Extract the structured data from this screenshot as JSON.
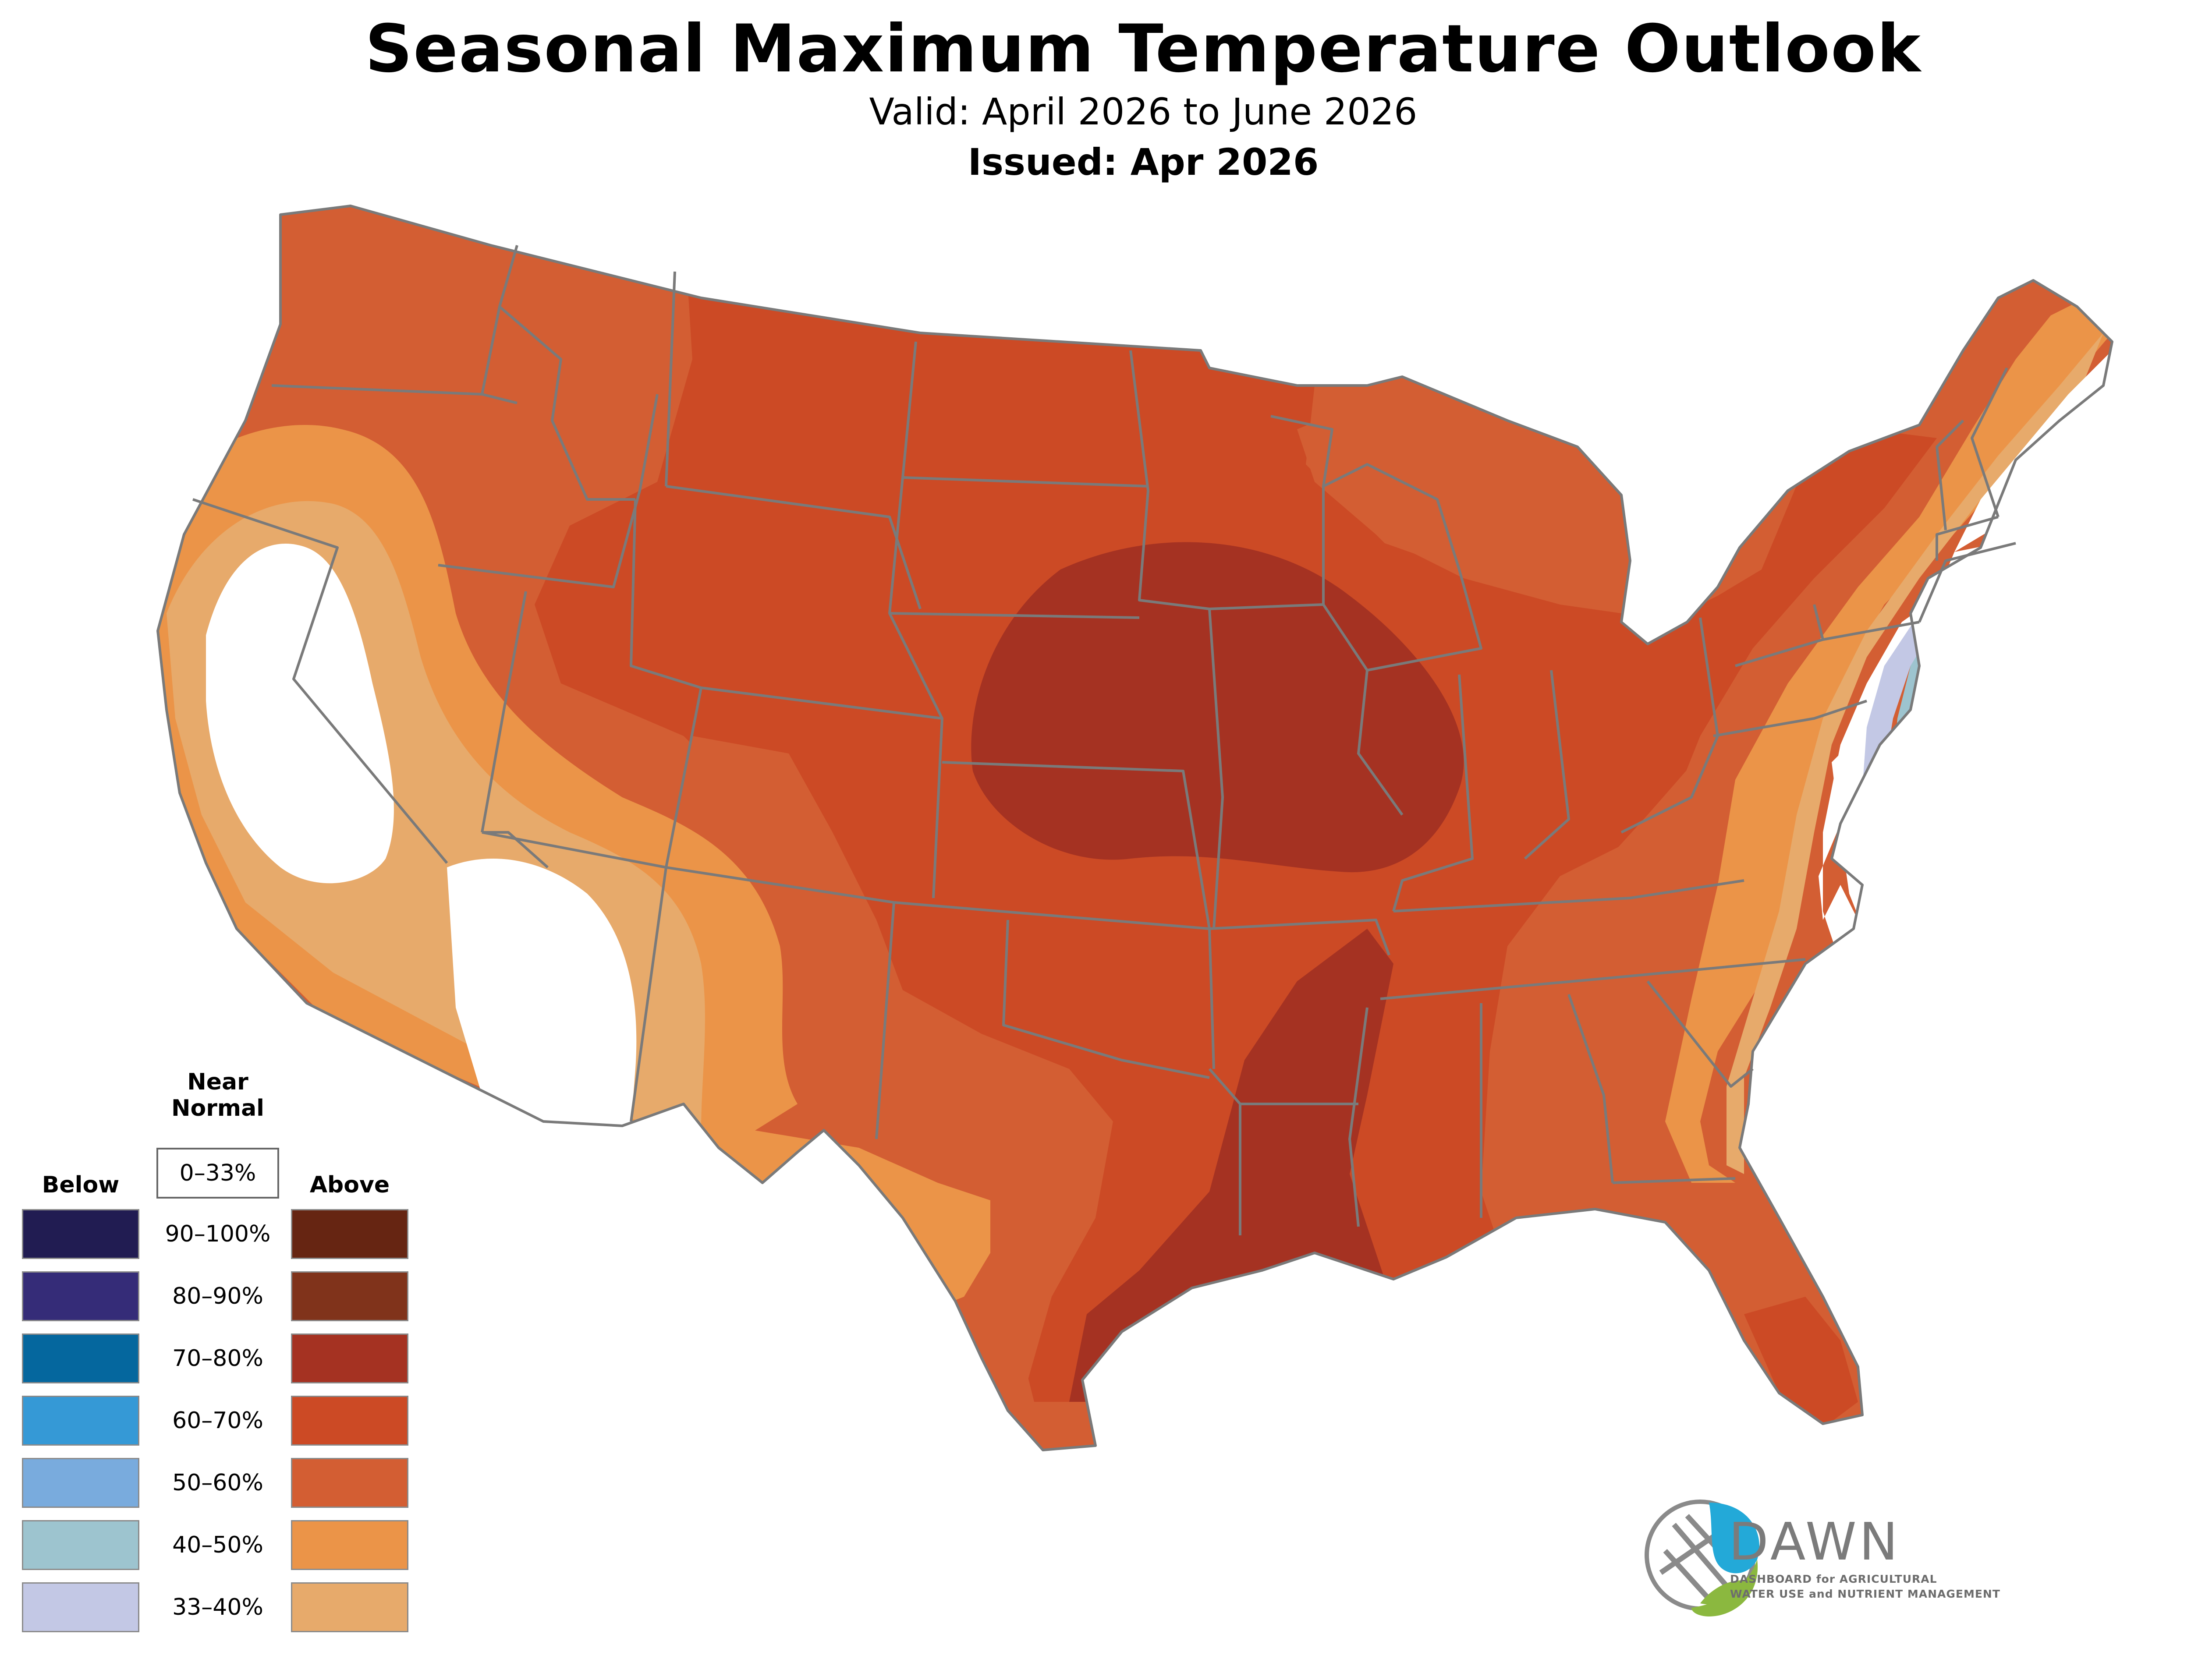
{
  "header": {
    "title": "Seasonal Maximum Temperature Outlook",
    "valid": "Valid: April 2026 to June 2026",
    "issued": "Issued: Apr 2026"
  },
  "legend": {
    "near_normal_heading_line1": "Near",
    "near_normal_heading_line2": "Normal",
    "near_normal_range": "0–33%",
    "below_heading": "Below",
    "above_heading": "Above",
    "rows": [
      {
        "range": "90–100%",
        "below_color": "#211c52",
        "above_color": "#662512"
      },
      {
        "range": "80–90%",
        "below_color": "#352c78",
        "above_color": "#80331b"
      },
      {
        "range": "70–80%",
        "below_color": "#05679e",
        "above_color": "#a53222"
      },
      {
        "range": "60–70%",
        "below_color": "#3599d6",
        "above_color": "#cc4a25"
      },
      {
        "range": "50–60%",
        "below_color": "#79abdd",
        "above_color": "#d35e33"
      },
      {
        "range": "40–50%",
        "below_color": "#9dc4cf",
        "above_color": "#eb9448"
      },
      {
        "range": "33–40%",
        "below_color": "#c3c8e5",
        "above_color": "#e7aa6b"
      }
    ]
  },
  "logo": {
    "name": "DAWN",
    "tagline_line1": "DASHBOARD for AGRICULTURAL",
    "tagline_line2": "WATER USE and NUTRIENT MANAGEMENT",
    "colors": {
      "blue": "#23a9d8",
      "green": "#8bb83f",
      "gray": "#8a8a8a"
    }
  },
  "map": {
    "region": "Contiguous United States",
    "border_color": "#7a7a7a",
    "zones": [
      {
        "category": "Above",
        "range": "60–70%"
      },
      {
        "category": "Above",
        "range": "50–60%"
      },
      {
        "category": "Above",
        "range": "40–50%"
      },
      {
        "category": "Above",
        "range": "33–40%"
      },
      {
        "category": "Above",
        "range": "70–80%"
      },
      {
        "category": "Below",
        "range": "33–40%"
      },
      {
        "category": "Below",
        "range": "40–50%"
      },
      {
        "category": "Below",
        "range": "50–60%"
      },
      {
        "category": "Near Normal",
        "range": "0–33%"
      }
    ]
  }
}
